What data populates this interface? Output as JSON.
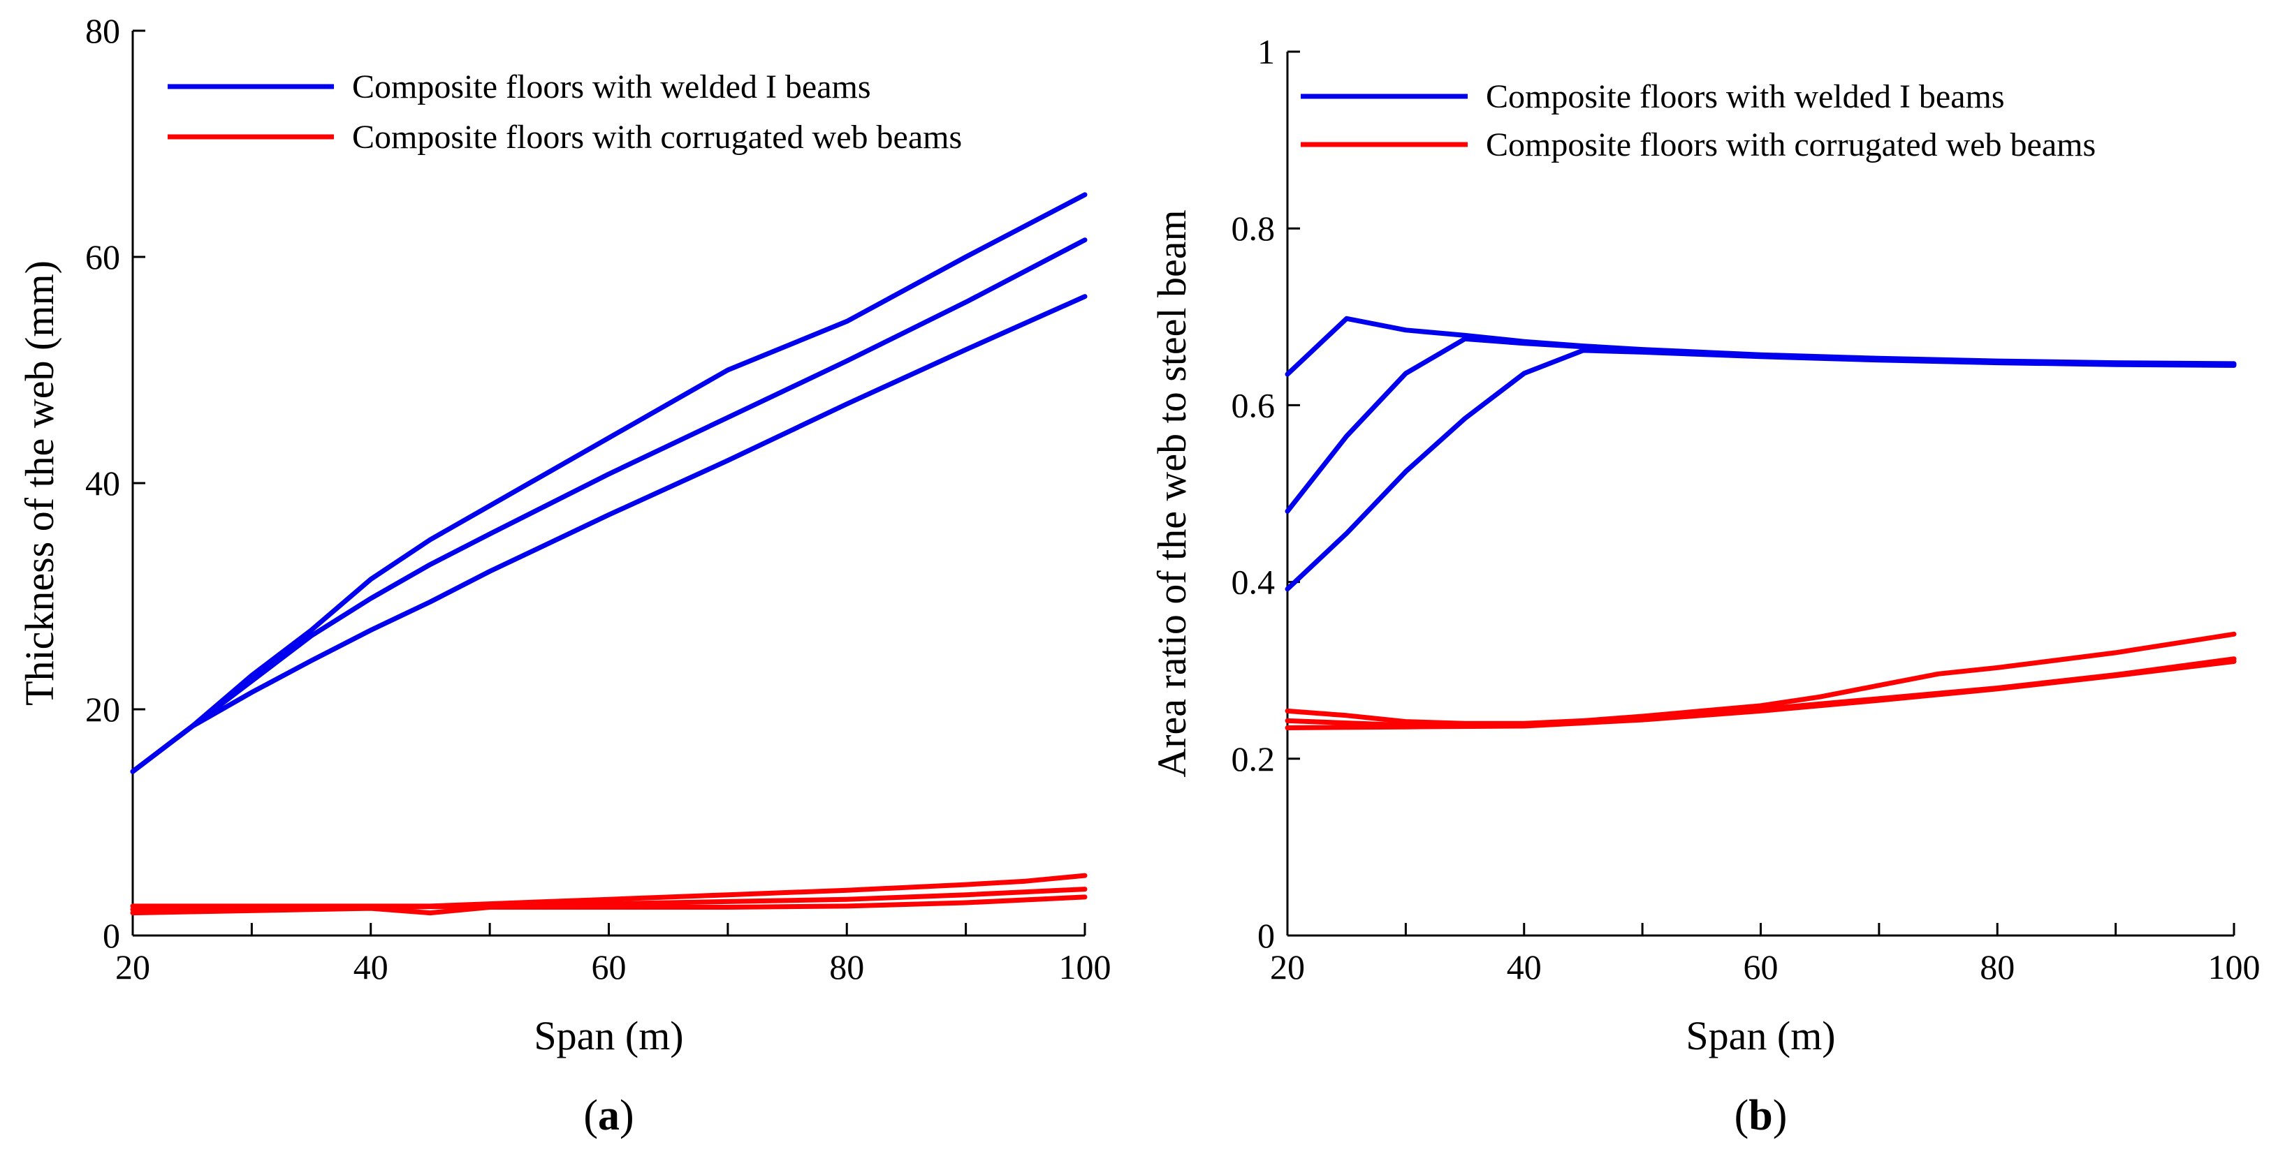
{
  "chart_data": [
    {
      "panel_label": {
        "open": "(",
        "letter": "a",
        "close": ")"
      },
      "type": "line",
      "title": "",
      "xlabel": "Span (m)",
      "ylabel": "Thickness of the web (mm)",
      "xlim": [
        20,
        100
      ],
      "ylim": [
        0,
        80
      ],
      "xticks": [
        20,
        40,
        60,
        80,
        100
      ],
      "yticks": [
        0,
        20,
        40,
        60,
        80
      ],
      "legend": {
        "placement": "top-left",
        "entries": [
          {
            "label": "Composite floors with welded I beams",
            "color": "#0000ee"
          },
          {
            "label": "Composite floors with corrugated web beams",
            "color": "#ff0000"
          }
        ]
      },
      "series": [
        {
          "name": "Composite floors with welded I beams",
          "color": "#0000ee",
          "x": [
            20,
            25,
            30,
            35,
            40,
            45,
            50,
            60,
            70,
            80,
            90,
            100
          ],
          "y": [
            14.5,
            18.5,
            23,
            27,
            31.5,
            35,
            38,
            44,
            50,
            54.3,
            60,
            65.5
          ]
        },
        {
          "name": "Composite floors with welded I beams",
          "color": "#0000ee",
          "x": [
            20,
            25,
            30,
            35,
            40,
            45,
            50,
            60,
            70,
            80,
            90,
            100
          ],
          "y": [
            14.5,
            18.5,
            22.5,
            26.5,
            29.8,
            32.8,
            35.5,
            40.8,
            45.8,
            50.8,
            56,
            61.5
          ]
        },
        {
          "name": "Composite floors with welded I beams",
          "color": "#0000ee",
          "x": [
            20,
            25,
            30,
            35,
            40,
            45,
            50,
            60,
            70,
            80,
            90,
            100
          ],
          "y": [
            14.5,
            18.5,
            21.5,
            24.3,
            27,
            29.5,
            32.2,
            37.2,
            42,
            47,
            51.8,
            56.5
          ]
        },
        {
          "name": "Composite floors with corrugated web beams",
          "color": "#ff0000",
          "x": [
            20,
            30,
            40,
            45,
            50,
            60,
            70,
            80,
            90,
            95,
            100
          ],
          "y": [
            2.6,
            2.6,
            2.6,
            2.6,
            2.8,
            3.2,
            3.6,
            4.0,
            4.5,
            4.8,
            5.3
          ]
        },
        {
          "name": "Composite floors with corrugated web beams",
          "color": "#ff0000",
          "x": [
            20,
            30,
            40,
            50,
            60,
            70,
            80,
            90,
            100
          ],
          "y": [
            2.3,
            2.4,
            2.5,
            2.6,
            2.8,
            3.0,
            3.2,
            3.6,
            4.1
          ]
        },
        {
          "name": "Composite floors with corrugated web beams",
          "color": "#ff0000",
          "x": [
            20,
            30,
            40,
            45,
            50,
            60,
            70,
            80,
            90,
            100
          ],
          "y": [
            2.0,
            2.2,
            2.4,
            2.0,
            2.5,
            2.5,
            2.5,
            2.6,
            2.9,
            3.4
          ]
        }
      ]
    },
    {
      "panel_label": {
        "open": "(",
        "letter": "b",
        "close": ")"
      },
      "type": "line",
      "title": "",
      "xlabel": "Span (m)",
      "ylabel": "Area ratio of the web to steel beam",
      "xlim": [
        20,
        100
      ],
      "ylim": [
        0,
        1
      ],
      "xticks": [
        20,
        40,
        60,
        80,
        100
      ],
      "yticks": [
        0,
        0.2,
        0.4,
        0.6,
        0.8,
        1
      ],
      "legend": {
        "placement": "top-right",
        "entries": [
          {
            "label": "Composite floors with welded I beams",
            "color": "#0000ee"
          },
          {
            "label": "Composite floors with corrugated web beams",
            "color": "#ff0000"
          }
        ]
      },
      "series": [
        {
          "name": "Composite floors with welded I beams",
          "color": "#0000ee",
          "x": [
            20,
            25,
            30,
            35,
            40,
            45,
            50,
            60,
            70,
            80,
            90,
            100
          ],
          "y": [
            0.635,
            0.698,
            0.685,
            0.679,
            0.672,
            0.667,
            0.663,
            0.657,
            0.653,
            0.65,
            0.648,
            0.647
          ]
        },
        {
          "name": "Composite floors with welded I beams",
          "color": "#0000ee",
          "x": [
            20,
            25,
            30,
            35,
            40,
            45,
            50,
            60,
            70,
            80,
            90,
            100
          ],
          "y": [
            0.48,
            0.565,
            0.636,
            0.675,
            0.67,
            0.666,
            0.662,
            0.656,
            0.652,
            0.649,
            0.647,
            0.646
          ]
        },
        {
          "name": "Composite floors with welded I beams",
          "color": "#0000ee",
          "x": [
            20,
            25,
            30,
            35,
            40,
            45,
            50,
            60,
            70,
            80,
            90,
            100
          ],
          "y": [
            0.392,
            0.455,
            0.525,
            0.585,
            0.636,
            0.662,
            0.66,
            0.655,
            0.651,
            0.648,
            0.646,
            0.645
          ]
        },
        {
          "name": "Composite floors with corrugated web beams",
          "color": "#ff0000",
          "x": [
            20,
            25,
            30,
            35,
            40,
            45,
            50,
            60,
            65,
            70,
            75,
            80,
            90,
            100
          ],
          "y": [
            0.254,
            0.249,
            0.242,
            0.24,
            0.24,
            0.243,
            0.248,
            0.26,
            0.27,
            0.283,
            0.296,
            0.303,
            0.32,
            0.341
          ]
        },
        {
          "name": "Composite floors with corrugated web beams",
          "color": "#ff0000",
          "x": [
            20,
            30,
            40,
            50,
            60,
            70,
            80,
            90,
            100
          ],
          "y": [
            0.243,
            0.238,
            0.238,
            0.245,
            0.256,
            0.268,
            0.28,
            0.295,
            0.313
          ]
        },
        {
          "name": "Composite floors with corrugated web beams",
          "color": "#ff0000",
          "x": [
            20,
            30,
            40,
            50,
            60,
            70,
            80,
            90,
            100
          ],
          "y": [
            0.235,
            0.236,
            0.237,
            0.244,
            0.254,
            0.266,
            0.279,
            0.294,
            0.31
          ]
        }
      ]
    }
  ]
}
